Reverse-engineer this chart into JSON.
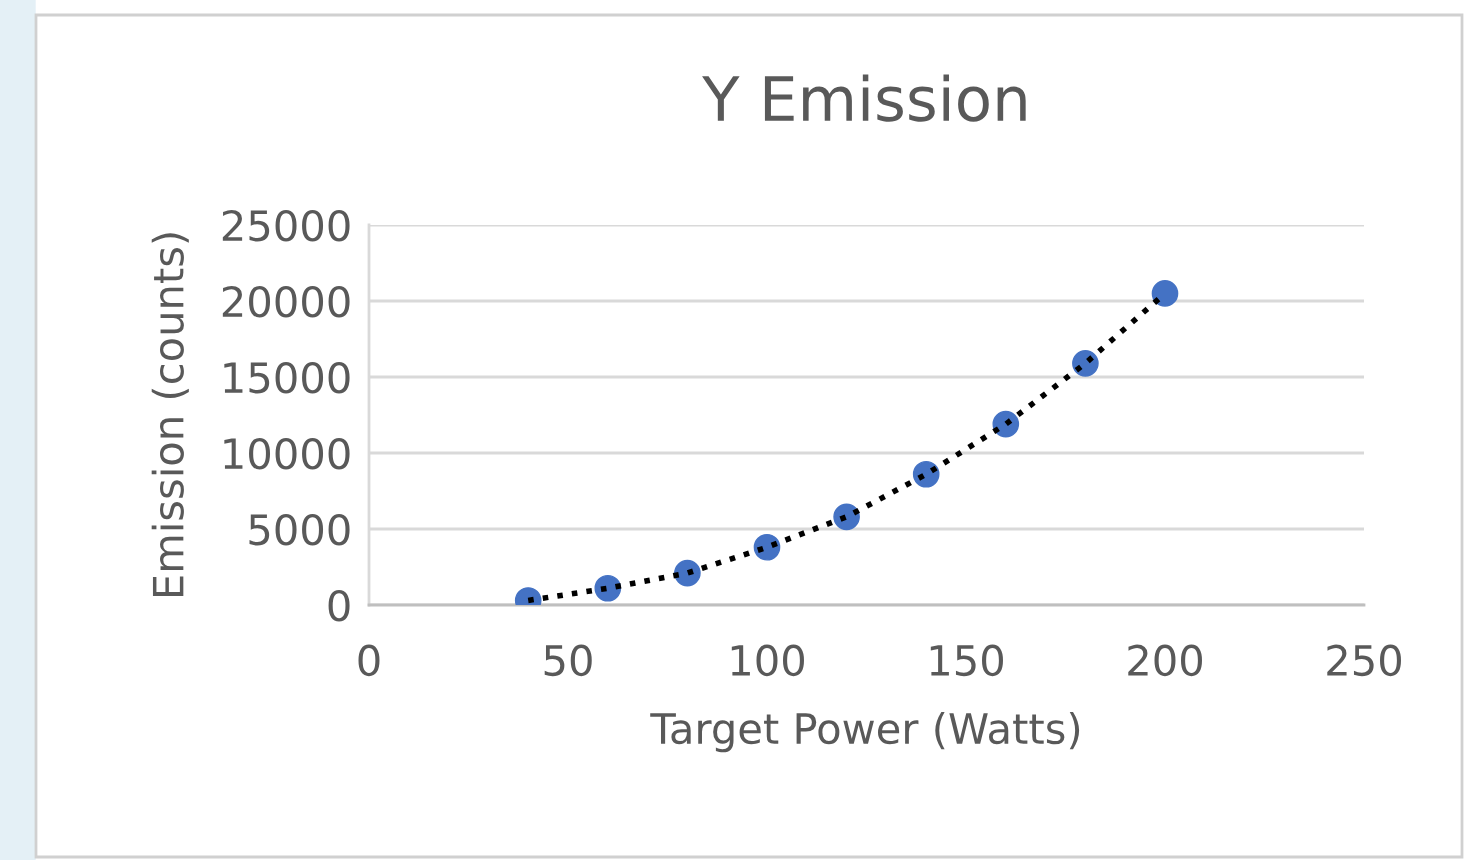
{
  "chart_data": {
    "type": "scatter",
    "title": "Y Emission",
    "xlabel": "Target Power (Watts)",
    "ylabel": "Emission (counts)",
    "x": [
      40,
      60,
      80,
      100,
      120,
      140,
      160,
      180,
      200
    ],
    "series": [
      {
        "color": "#4472c4",
        "values": [
          300,
          1100,
          2100,
          3800,
          5800,
          8600,
          11900,
          15900,
          20500
        ],
        "marker": "circle"
      },
      {
        "type": "line",
        "color": "#000000",
        "line_style": "dotted",
        "marker": "none",
        "x": [
          40,
          60,
          80,
          100,
          120,
          140,
          160,
          180,
          200
        ],
        "values": [
          300,
          1100,
          2100,
          3800,
          5800,
          8600,
          11900,
          15900,
          20500
        ]
      }
    ],
    "xlim": [
      0,
      250
    ],
    "xticks": [
      0,
      50,
      100,
      150,
      200,
      250
    ],
    "ylim": [
      0,
      25000
    ],
    "yticks": [
      0,
      5000,
      10000,
      15000,
      20000,
      25000
    ],
    "grid": "y",
    "legend": false
  }
}
